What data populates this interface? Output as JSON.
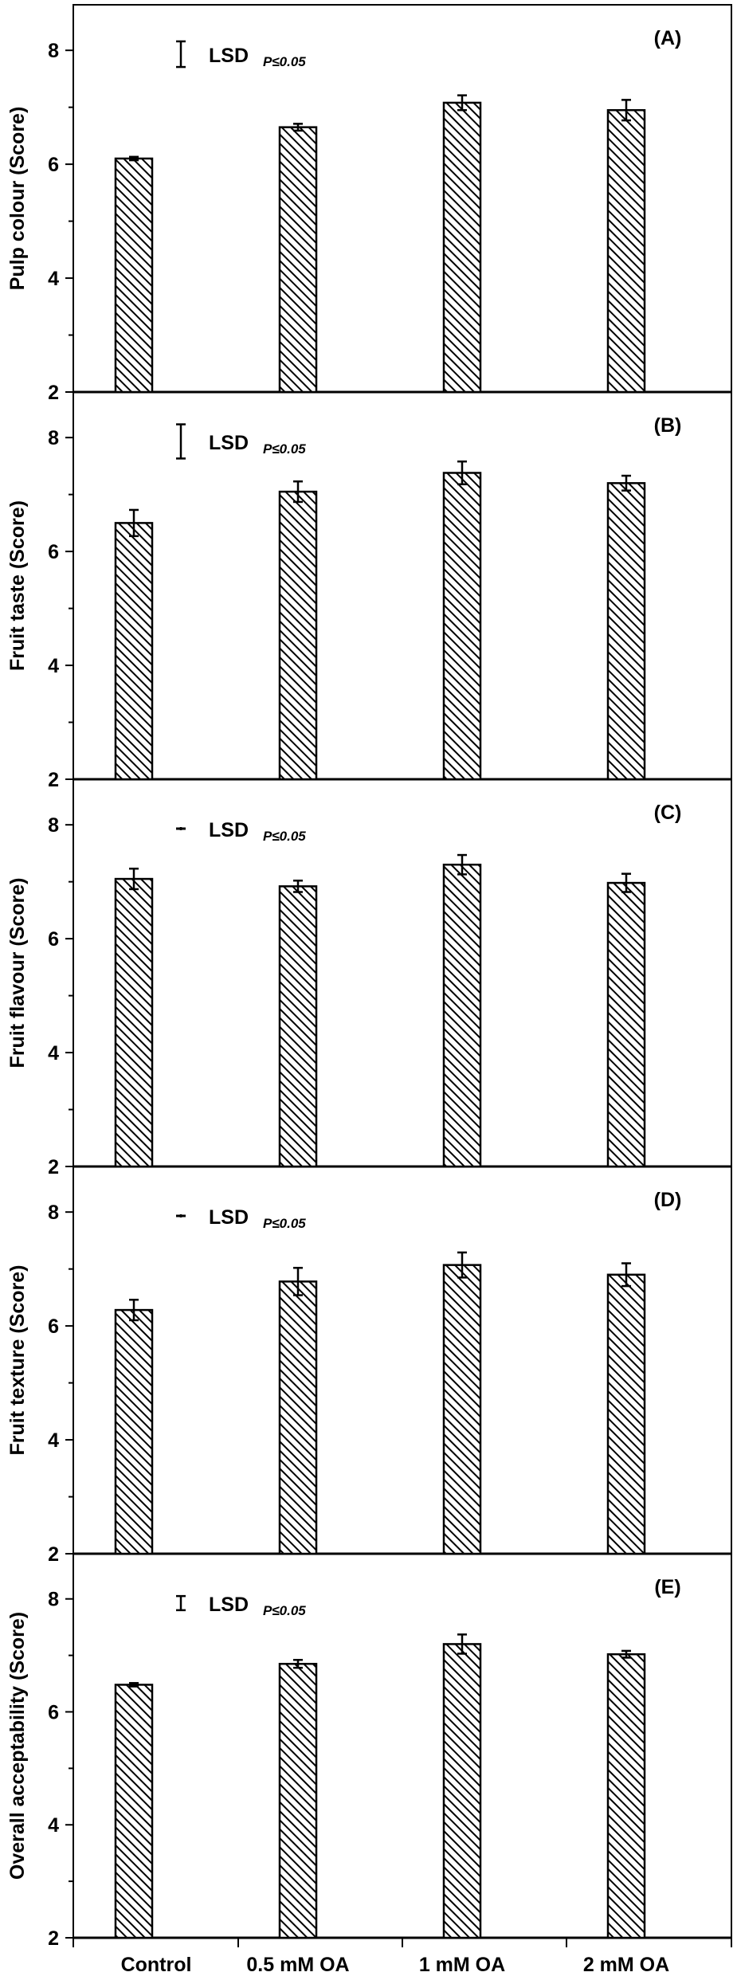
{
  "chart_data": [
    {
      "type": "bar",
      "panel_label": "(A)",
      "ylabel": "Pulp colour (Score)",
      "categories": [
        "Control",
        "0.5 mM OA",
        "1 mM OA",
        "2 mM OA"
      ],
      "values": [
        6.1,
        6.65,
        7.08,
        6.95
      ],
      "errors": [
        0.03,
        0.06,
        0.13,
        0.18
      ],
      "ylim": [
        2,
        8.8
      ],
      "yticks": [
        "2",
        "4",
        "6",
        "8"
      ],
      "lsd": {
        "label": "LSD",
        "subscript": "P≤0.05",
        "value": 0.45
      }
    },
    {
      "type": "bar",
      "panel_label": "(B)",
      "ylabel": "Fruit taste (Score)",
      "categories": [
        "Control",
        "0.5 mM OA",
        "1 mM OA",
        "2 mM OA"
      ],
      "values": [
        6.5,
        7.05,
        7.38,
        7.2
      ],
      "errors": [
        0.23,
        0.18,
        0.2,
        0.13
      ],
      "ylim": [
        2,
        8.8
      ],
      "yticks": [
        "2",
        "4",
        "6",
        "8"
      ],
      "lsd": {
        "label": "LSD",
        "subscript": "P≤0.05",
        "value": 0.6
      }
    },
    {
      "type": "bar",
      "panel_label": "(C)",
      "ylabel": "Fruit flavour (Score)",
      "categories": [
        "Control",
        "0.5 mM OA",
        "1 mM OA",
        "2 mM OA"
      ],
      "values": [
        7.05,
        6.92,
        7.3,
        6.98
      ],
      "errors": [
        0.18,
        0.1,
        0.17,
        0.16
      ],
      "ylim": [
        2,
        8.8
      ],
      "yticks": [
        "2",
        "4",
        "6",
        "8"
      ],
      "lsd": {
        "label": "LSD",
        "subscript": "P≤0.05",
        "value": 0.02
      }
    },
    {
      "type": "bar",
      "panel_label": "(D)",
      "ylabel": "Fruit texture (Score)",
      "categories": [
        "Control",
        "0.5 mM OA",
        "1 mM OA",
        "2 mM OA"
      ],
      "values": [
        6.28,
        6.78,
        7.07,
        6.9
      ],
      "errors": [
        0.18,
        0.24,
        0.22,
        0.2
      ],
      "ylim": [
        2,
        8.8
      ],
      "yticks": [
        "2",
        "4",
        "6",
        "8"
      ],
      "lsd": {
        "label": "LSD",
        "subscript": "P≤0.05",
        "value": 0.02
      }
    },
    {
      "type": "bar",
      "panel_label": "(E)",
      "ylabel": "Overall acceptability (Score)",
      "categories": [
        "Control",
        "0.5 mM OA",
        "1 mM OA",
        "2 mM OA"
      ],
      "values": [
        6.48,
        6.85,
        7.2,
        7.02
      ],
      "errors": [
        0.03,
        0.07,
        0.17,
        0.06
      ],
      "ylim": [
        2,
        8.8
      ],
      "yticks": [
        "2",
        "4",
        "6",
        "8"
      ],
      "lsd": {
        "label": "LSD",
        "subscript": "P≤0.05",
        "value": 0.25
      }
    }
  ]
}
